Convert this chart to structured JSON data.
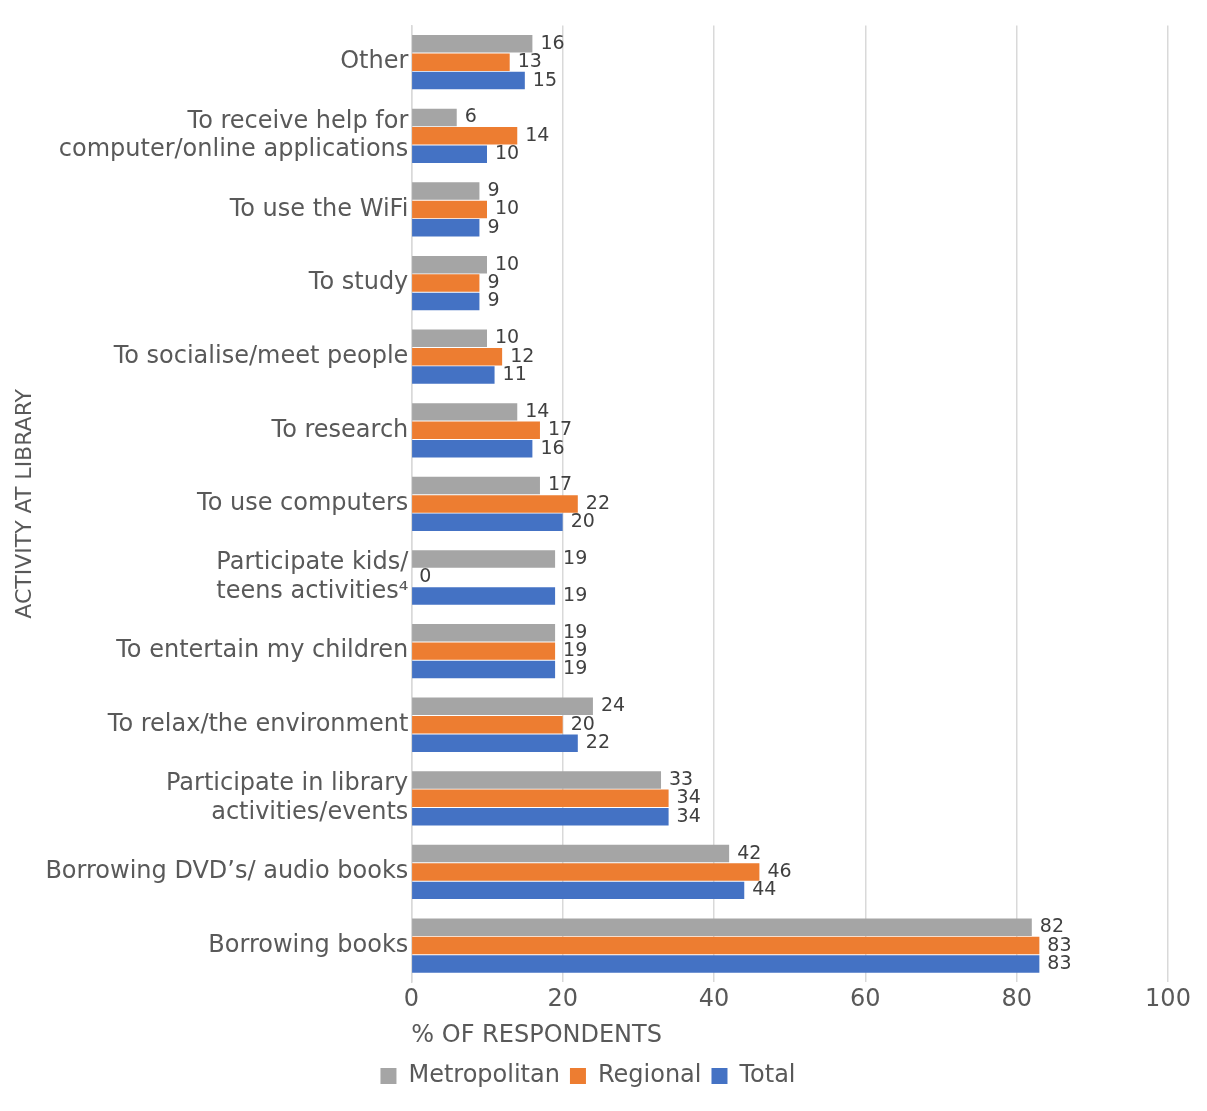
{
  "chart_data": {
    "type": "bar",
    "orientation": "horizontal",
    "xlabel": "% OF RESPONDENTS",
    "ylabel": "ACTIVITY AT LIBRARY",
    "categories": [
      "Other",
      "To receive help for computer/online applications",
      "To use the WiFi",
      "To study",
      "To socialise/meet people",
      "To research",
      "To use computers",
      "Participate kids/ teens activities⁴",
      "To entertain my children",
      "To relax/the environment",
      "Participate in library activities/events",
      "Borrowing DVD’s/ audio books",
      "Borrowing books"
    ],
    "series": [
      {
        "name": "Metropolitan",
        "color": "#a5a5a5",
        "values": [
          16,
          6,
          9,
          10,
          10,
          14,
          17,
          19,
          19,
          24,
          33,
          42,
          82
        ]
      },
      {
        "name": "Regional",
        "color": "#ed7d31",
        "values": [
          13,
          14,
          10,
          9,
          12,
          17,
          22,
          0,
          19,
          20,
          34,
          46,
          83
        ]
      },
      {
        "name": "Total",
        "color": "#4472c4",
        "values": [
          15,
          10,
          9,
          9,
          11,
          16,
          20,
          19,
          19,
          22,
          34,
          44,
          83
        ]
      }
    ],
    "xlim": [
      0,
      100
    ],
    "xticks": [
      0,
      20,
      40,
      60,
      80,
      100
    ],
    "grid": "x",
    "legend": "bottom",
    "data_labels": true
  }
}
